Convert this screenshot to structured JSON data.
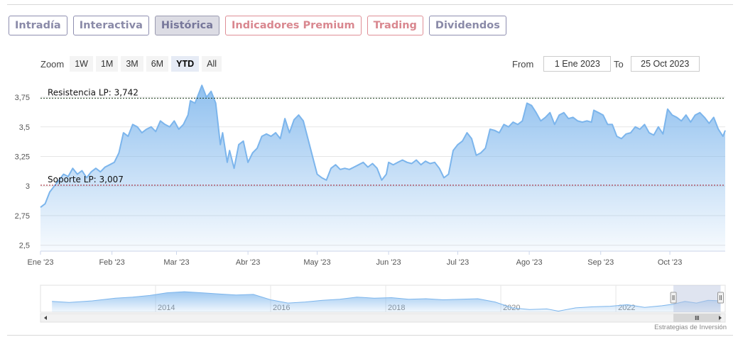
{
  "tabs": [
    {
      "label": "Intradía",
      "variant": "normal"
    },
    {
      "label": "Interactiva",
      "variant": "normal"
    },
    {
      "label": "Histórica",
      "variant": "active"
    },
    {
      "label": "Indicadores Premium",
      "variant": "premium"
    },
    {
      "label": "Trading",
      "variant": "premium"
    },
    {
      "label": "Dividendos",
      "variant": "normal"
    }
  ],
  "zoom": {
    "label": "Zoom",
    "buttons": [
      "1W",
      "1M",
      "3M",
      "6M",
      "YTD",
      "All"
    ],
    "selected": "YTD"
  },
  "range": {
    "from_label": "From",
    "from_value": "1 Ene 2023",
    "to_label": "To",
    "to_value": "25 Oct 2023"
  },
  "credit": "Estrategias de Inversión",
  "colors": {
    "line": "#7cb5ec",
    "resistance": "#1a3d1a",
    "support": "#a0182a",
    "navigator_mask": "#b8c4de"
  },
  "chart_data": {
    "type": "area",
    "title": "",
    "xlabel": "",
    "ylabel": "",
    "ylim": [
      2.45,
      3.9
    ],
    "yticks": [
      2.5,
      2.75,
      3,
      3.25,
      3.5,
      3.75
    ],
    "ytick_labels": [
      "2,5",
      "2,75",
      "3",
      "3,25",
      "3,5",
      "3,75"
    ],
    "xlim": [
      "2023-01-01",
      "2023-10-25"
    ],
    "xticks": [
      {
        "date": "2023-01-01",
        "label": "Ene '23"
      },
      {
        "date": "2023-02-01",
        "label": "Feb '23"
      },
      {
        "date": "2023-03-01",
        "label": "Mar '23"
      },
      {
        "date": "2023-04-01",
        "label": "Abr '23"
      },
      {
        "date": "2023-05-01",
        "label": "May '23"
      },
      {
        "date": "2023-06-01",
        "label": "Jun '23"
      },
      {
        "date": "2023-07-01",
        "label": "Jul '23"
      },
      {
        "date": "2023-08-01",
        "label": "Ago '23"
      },
      {
        "date": "2023-09-01",
        "label": "Sep '23"
      },
      {
        "date": "2023-10-01",
        "label": "Oct '23"
      }
    ],
    "series": [
      {
        "points": [
          [
            "2023-01-01",
            2.82
          ],
          [
            "2023-01-03",
            2.85
          ],
          [
            "2023-01-05",
            2.95
          ],
          [
            "2023-01-07",
            3.0
          ],
          [
            "2023-01-09",
            3.05
          ],
          [
            "2023-01-11",
            3.1
          ],
          [
            "2023-01-13",
            3.08
          ],
          [
            "2023-01-15",
            3.15
          ],
          [
            "2023-01-17",
            3.1
          ],
          [
            "2023-01-19",
            3.13
          ],
          [
            "2023-01-21",
            3.07
          ],
          [
            "2023-01-23",
            3.12
          ],
          [
            "2023-01-25",
            3.15
          ],
          [
            "2023-01-27",
            3.12
          ],
          [
            "2023-01-29",
            3.16
          ],
          [
            "2023-01-31",
            3.18
          ],
          [
            "2023-02-02",
            3.2
          ],
          [
            "2023-02-04",
            3.28
          ],
          [
            "2023-02-06",
            3.45
          ],
          [
            "2023-02-08",
            3.42
          ],
          [
            "2023-02-10",
            3.52
          ],
          [
            "2023-02-12",
            3.5
          ],
          [
            "2023-02-14",
            3.45
          ],
          [
            "2023-02-16",
            3.48
          ],
          [
            "2023-02-18",
            3.5
          ],
          [
            "2023-02-20",
            3.46
          ],
          [
            "2023-02-22",
            3.55
          ],
          [
            "2023-02-24",
            3.52
          ],
          [
            "2023-02-26",
            3.5
          ],
          [
            "2023-02-28",
            3.55
          ],
          [
            "2023-03-02",
            3.48
          ],
          [
            "2023-03-04",
            3.52
          ],
          [
            "2023-03-06",
            3.6
          ],
          [
            "2023-03-07",
            3.72
          ],
          [
            "2023-03-09",
            3.7
          ],
          [
            "2023-03-11",
            3.8
          ],
          [
            "2023-03-12",
            3.85
          ],
          [
            "2023-03-14",
            3.75
          ],
          [
            "2023-03-16",
            3.8
          ],
          [
            "2023-03-18",
            3.7
          ],
          [
            "2023-03-20",
            3.35
          ],
          [
            "2023-03-21",
            3.45
          ],
          [
            "2023-03-23",
            3.2
          ],
          [
            "2023-03-24",
            3.3
          ],
          [
            "2023-03-26",
            3.15
          ],
          [
            "2023-03-28",
            3.35
          ],
          [
            "2023-03-30",
            3.38
          ],
          [
            "2023-04-01",
            3.2
          ],
          [
            "2023-04-03",
            3.28
          ],
          [
            "2023-04-05",
            3.32
          ],
          [
            "2023-04-07",
            3.42
          ],
          [
            "2023-04-09",
            3.44
          ],
          [
            "2023-04-11",
            3.42
          ],
          [
            "2023-04-13",
            3.45
          ],
          [
            "2023-04-15",
            3.4
          ],
          [
            "2023-04-17",
            3.57
          ],
          [
            "2023-04-19",
            3.45
          ],
          [
            "2023-04-21",
            3.56
          ],
          [
            "2023-04-23",
            3.6
          ],
          [
            "2023-04-25",
            3.55
          ],
          [
            "2023-04-27",
            3.4
          ],
          [
            "2023-04-29",
            3.25
          ],
          [
            "2023-05-01",
            3.1
          ],
          [
            "2023-05-03",
            3.07
          ],
          [
            "2023-05-05",
            3.05
          ],
          [
            "2023-05-07",
            3.15
          ],
          [
            "2023-05-09",
            3.18
          ],
          [
            "2023-05-11",
            3.14
          ],
          [
            "2023-05-13",
            3.15
          ],
          [
            "2023-05-15",
            3.14
          ],
          [
            "2023-05-17",
            3.16
          ],
          [
            "2023-05-19",
            3.18
          ],
          [
            "2023-05-21",
            3.2
          ],
          [
            "2023-05-23",
            3.16
          ],
          [
            "2023-05-25",
            3.19
          ],
          [
            "2023-05-27",
            3.15
          ],
          [
            "2023-05-29",
            3.05
          ],
          [
            "2023-05-31",
            3.1
          ],
          [
            "2023-06-01",
            3.2
          ],
          [
            "2023-06-03",
            3.18
          ],
          [
            "2023-06-05",
            3.2
          ],
          [
            "2023-06-07",
            3.22
          ],
          [
            "2023-06-09",
            3.2
          ],
          [
            "2023-06-11",
            3.19
          ],
          [
            "2023-06-13",
            3.22
          ],
          [
            "2023-06-15",
            3.18
          ],
          [
            "2023-06-17",
            3.21
          ],
          [
            "2023-06-19",
            3.19
          ],
          [
            "2023-06-21",
            3.2
          ],
          [
            "2023-06-23",
            3.15
          ],
          [
            "2023-06-25",
            3.07
          ],
          [
            "2023-06-27",
            3.1
          ],
          [
            "2023-06-29",
            3.3
          ],
          [
            "2023-07-01",
            3.35
          ],
          [
            "2023-07-03",
            3.38
          ],
          [
            "2023-07-05",
            3.45
          ],
          [
            "2023-07-07",
            3.4
          ],
          [
            "2023-07-09",
            3.26
          ],
          [
            "2023-07-11",
            3.28
          ],
          [
            "2023-07-13",
            3.32
          ],
          [
            "2023-07-15",
            3.48
          ],
          [
            "2023-07-17",
            3.47
          ],
          [
            "2023-07-19",
            3.45
          ],
          [
            "2023-07-21",
            3.52
          ],
          [
            "2023-07-23",
            3.5
          ],
          [
            "2023-07-25",
            3.54
          ],
          [
            "2023-07-27",
            3.52
          ],
          [
            "2023-07-29",
            3.55
          ],
          [
            "2023-07-31",
            3.7
          ],
          [
            "2023-08-02",
            3.68
          ],
          [
            "2023-08-04",
            3.62
          ],
          [
            "2023-08-06",
            3.55
          ],
          [
            "2023-08-08",
            3.58
          ],
          [
            "2023-08-10",
            3.62
          ],
          [
            "2023-08-12",
            3.52
          ],
          [
            "2023-08-14",
            3.6
          ],
          [
            "2023-08-16",
            3.62
          ],
          [
            "2023-08-18",
            3.57
          ],
          [
            "2023-08-20",
            3.58
          ],
          [
            "2023-08-22",
            3.55
          ],
          [
            "2023-08-24",
            3.54
          ],
          [
            "2023-08-26",
            3.55
          ],
          [
            "2023-08-28",
            3.54
          ],
          [
            "2023-08-29",
            3.64
          ],
          [
            "2023-08-31",
            3.62
          ],
          [
            "2023-09-02",
            3.6
          ],
          [
            "2023-09-04",
            3.52
          ],
          [
            "2023-09-06",
            3.52
          ],
          [
            "2023-09-08",
            3.42
          ],
          [
            "2023-09-10",
            3.4
          ],
          [
            "2023-09-12",
            3.44
          ],
          [
            "2023-09-14",
            3.45
          ],
          [
            "2023-09-16",
            3.5
          ],
          [
            "2023-09-18",
            3.48
          ],
          [
            "2023-09-20",
            3.52
          ],
          [
            "2023-09-22",
            3.45
          ],
          [
            "2023-09-24",
            3.43
          ],
          [
            "2023-09-26",
            3.5
          ],
          [
            "2023-09-28",
            3.44
          ],
          [
            "2023-09-30",
            3.65
          ],
          [
            "2023-10-02",
            3.6
          ],
          [
            "2023-10-04",
            3.58
          ],
          [
            "2023-10-06",
            3.55
          ],
          [
            "2023-10-08",
            3.6
          ],
          [
            "2023-10-10",
            3.54
          ],
          [
            "2023-10-12",
            3.6
          ],
          [
            "2023-10-14",
            3.62
          ],
          [
            "2023-10-16",
            3.58
          ],
          [
            "2023-10-18",
            3.53
          ],
          [
            "2023-10-20",
            3.58
          ],
          [
            "2023-10-22",
            3.48
          ],
          [
            "2023-10-24",
            3.42
          ],
          [
            "2023-10-25",
            3.47
          ]
        ]
      }
    ],
    "plot_lines": [
      {
        "label": "Resistencia LP: 3,742",
        "value": 3.742,
        "style": "dotted"
      },
      {
        "label": "Soporte LP: 3,007",
        "value": 3.007,
        "style": "dotted"
      }
    ],
    "grid": true,
    "legend": "none",
    "navigator": {
      "type": "area",
      "xlim": [
        2012.0,
        2023.9
      ],
      "ylim": [
        1.5,
        6.5
      ],
      "x_labels": [
        "2014",
        "2016",
        "2018",
        "2020",
        "2022"
      ],
      "x_label_positions": [
        2014,
        2016,
        2018,
        2020,
        2022
      ],
      "selected_range": [
        2023.0,
        2023.82
      ],
      "series": [
        [
          2012.2,
          3.5
        ],
        [
          2012.5,
          3.3
        ],
        [
          2012.9,
          3.6
        ],
        [
          2013.3,
          4.1
        ],
        [
          2013.6,
          4.3
        ],
        [
          2013.9,
          4.6
        ],
        [
          2014.2,
          5.1
        ],
        [
          2014.5,
          5.3
        ],
        [
          2014.8,
          5.1
        ],
        [
          2015.1,
          4.9
        ],
        [
          2015.4,
          4.7
        ],
        [
          2015.7,
          4.8
        ],
        [
          2016.0,
          3.8
        ],
        [
          2016.3,
          3.2
        ],
        [
          2016.6,
          3.4
        ],
        [
          2016.9,
          3.7
        ],
        [
          2017.2,
          3.9
        ],
        [
          2017.5,
          4.3
        ],
        [
          2017.8,
          4.1
        ],
        [
          2018.1,
          4.2
        ],
        [
          2018.4,
          3.9
        ],
        [
          2018.7,
          4.0
        ],
        [
          2019.0,
          3.8
        ],
        [
          2019.3,
          3.9
        ],
        [
          2019.6,
          4.0
        ],
        [
          2019.9,
          3.4
        ],
        [
          2020.2,
          2.3
        ],
        [
          2020.5,
          2.0
        ],
        [
          2020.8,
          2.1
        ],
        [
          2021.0,
          1.7
        ],
        [
          2021.3,
          2.3
        ],
        [
          2021.6,
          2.5
        ],
        [
          2021.9,
          2.6
        ],
        [
          2022.2,
          2.9
        ],
        [
          2022.5,
          2.4
        ],
        [
          2022.8,
          2.7
        ],
        [
          2023.0,
          3.0
        ],
        [
          2023.2,
          3.5
        ],
        [
          2023.4,
          3.2
        ],
        [
          2023.6,
          3.7
        ],
        [
          2023.82,
          3.6
        ]
      ]
    }
  }
}
